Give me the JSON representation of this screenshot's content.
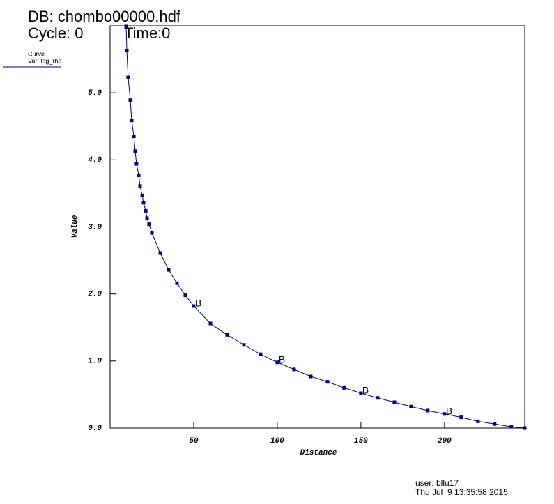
{
  "chart_data": {
    "type": "line",
    "db_label": "DB: chombo00000.hdf",
    "cycle_label": "Cycle: 0",
    "time_label": "Time:0",
    "legend_title": "Curve",
    "x_label": "Distance",
    "y_label": "Value",
    "curve_label": "B",
    "user_label": "user: bllu17",
    "date_label": "Thu Jul  9 13:35:58 2015",
    "x": [
      9.6,
      10.0,
      10.8,
      12.1,
      12.9,
      14.2,
      15.0,
      15.8,
      17.1,
      17.9,
      19.2,
      20.0,
      21.3,
      22.1,
      23.3,
      25,
      30,
      35,
      40,
      45,
      50,
      60,
      70,
      80,
      90,
      100,
      110,
      120,
      130,
      140,
      150,
      160,
      170,
      180,
      190,
      200,
      210,
      220,
      230,
      240,
      248
    ],
    "series": [
      {
        "name": "Var: log_rho",
        "color": "#000080",
        "values": [
          5.99,
          5.63,
          5.23,
          4.89,
          4.59,
          4.35,
          4.13,
          3.94,
          3.77,
          3.61,
          3.47,
          3.36,
          3.24,
          3.13,
          3.04,
          2.91,
          2.61,
          2.36,
          2.16,
          1.98,
          1.82,
          1.56,
          1.39,
          1.24,
          1.1,
          0.98,
          0.875,
          0.77,
          0.69,
          0.6,
          0.52,
          0.45,
          0.385,
          0.32,
          0.26,
          0.21,
          0.16,
          0.1,
          0.06,
          0.02,
          0.0
        ]
      }
    ],
    "xlim": [
      0,
      248
    ],
    "ylim": [
      0,
      6
    ],
    "xticks": [
      50,
      100,
      150,
      200
    ],
    "yticks": [
      {
        "value": 0,
        "label": "0.0"
      },
      {
        "value": 1,
        "label": "1.0"
      },
      {
        "value": 2,
        "label": "2.0"
      },
      {
        "value": 3,
        "label": "3.0"
      },
      {
        "value": 4,
        "label": "4.0"
      },
      {
        "value": 5,
        "label": "5.0"
      }
    ]
  }
}
